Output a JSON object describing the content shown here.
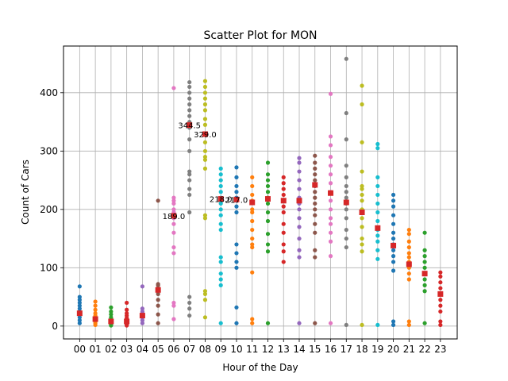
{
  "chart_data": {
    "type": "scatter",
    "title": "Scatter Plot for MON",
    "xlabel": "Hour of the Day",
    "ylabel": "Count of Cars",
    "categories": [
      "00",
      "01",
      "02",
      "03",
      "04",
      "05",
      "06",
      "07",
      "08",
      "09",
      "10",
      "11",
      "12",
      "13",
      "14",
      "15",
      "16",
      "17",
      "18",
      "19",
      "20",
      "21",
      "22",
      "23"
    ],
    "yticks": [
      0,
      100,
      200,
      300,
      400
    ],
    "ylim": [
      -22,
      480
    ],
    "grid": true,
    "mean_marker_color": "#d62728",
    "series": [
      {
        "values": [
          5,
          10,
          15,
          20,
          25,
          30,
          35,
          40,
          45,
          50,
          68
        ],
        "mean": 22
      },
      {
        "values": [
          2,
          5,
          8,
          10,
          12,
          15,
          18,
          22,
          28,
          35,
          42
        ],
        "mean": 12
      },
      {
        "values": [
          1,
          3,
          6,
          8,
          12,
          15,
          20,
          25,
          32
        ],
        "mean": 8
      },
      {
        "values": [
          1,
          3,
          5,
          8,
          10,
          14,
          18,
          22,
          28,
          40
        ],
        "mean": 8
      },
      {
        "values": [
          5,
          10,
          15,
          18,
          22,
          25,
          30,
          68
        ],
        "mean": 18
      },
      {
        "values": [
          5,
          20,
          35,
          45,
          55,
          60,
          65,
          70,
          72,
          215
        ],
        "mean": 62
      },
      {
        "values": [
          12,
          35,
          40,
          125,
          135,
          160,
          175,
          185,
          195,
          200,
          210,
          215,
          220,
          408
        ],
        "mean": 189.0
      },
      {
        "values": [
          18,
          30,
          40,
          50,
          195,
          225,
          235,
          250,
          260,
          265,
          300,
          320,
          340,
          350,
          360,
          370,
          380,
          390,
          400,
          410,
          418
        ],
        "mean": 344.5
      },
      {
        "values": [
          15,
          45,
          55,
          60,
          185,
          190,
          270,
          285,
          290,
          300,
          315,
          330,
          345,
          355,
          370,
          380,
          390,
          400,
          410,
          420
        ],
        "mean": 329.0
      },
      {
        "values": [
          5,
          70,
          80,
          90,
          110,
          118,
          165,
          175,
          190,
          200,
          210,
          215,
          220,
          230,
          240,
          250,
          260,
          270
        ],
        "mean": 218.0
      },
      {
        "values": [
          5,
          32,
          100,
          110,
          125,
          140,
          195,
          205,
          215,
          220,
          230,
          240,
          255,
          272
        ],
        "mean": 217.0
      },
      {
        "values": [
          5,
          12,
          92,
          135,
          140,
          150,
          165,
          180,
          195,
          200,
          215,
          225,
          240,
          255
        ],
        "mean": 212
      },
      {
        "values": [
          5,
          128,
          140,
          158,
          180,
          195,
          210,
          220,
          230,
          240,
          250,
          260,
          280
        ],
        "mean": 218
      },
      {
        "values": [
          110,
          128,
          140,
          160,
          175,
          195,
          205,
          215,
          225,
          235,
          245,
          255
        ],
        "mean": 215
      },
      {
        "values": [
          5,
          118,
          130,
          150,
          170,
          185,
          200,
          210,
          220,
          235,
          250,
          265,
          280,
          288
        ],
        "mean": 215
      },
      {
        "values": [
          5,
          118,
          130,
          160,
          175,
          190,
          200,
          210,
          220,
          230,
          240,
          250,
          260,
          270,
          280,
          292
        ],
        "mean": 242
      },
      {
        "values": [
          5,
          120,
          145,
          160,
          175,
          185,
          200,
          215,
          230,
          245,
          260,
          275,
          290,
          310,
          325,
          398
        ],
        "mean": 228
      },
      {
        "values": [
          2,
          135,
          150,
          165,
          185,
          200,
          210,
          220,
          230,
          240,
          255,
          275,
          320,
          365,
          458
        ],
        "mean": 212
      },
      {
        "values": [
          2,
          128,
          140,
          150,
          170,
          185,
          200,
          215,
          225,
          235,
          240,
          265,
          315,
          380,
          412
        ],
        "mean": 195
      },
      {
        "values": [
          2,
          115,
          130,
          145,
          155,
          165,
          180,
          195,
          210,
          225,
          240,
          255,
          305,
          312
        ],
        "mean": 168
      },
      {
        "values": [
          2,
          8,
          95,
          110,
          120,
          130,
          140,
          150,
          160,
          175,
          190,
          205,
          215,
          225
        ],
        "mean": 138
      },
      {
        "values": [
          2,
          8,
          80,
          90,
          100,
          110,
          118,
          125,
          135,
          145,
          158,
          165
        ],
        "mean": 106
      },
      {
        "values": [
          5,
          60,
          70,
          80,
          90,
          100,
          110,
          120,
          130,
          160
        ],
        "mean": 90
      },
      {
        "values": [
          2,
          8,
          25,
          35,
          45,
          55,
          65,
          75,
          85,
          92
        ],
        "mean": 55
      }
    ],
    "annotations": [
      {
        "text": "189.0",
        "x": "06",
        "y": 189.0
      },
      {
        "text": "344.5",
        "x": "07",
        "y": 344.5
      },
      {
        "text": "329.0",
        "x": "08",
        "y": 329.0
      },
      {
        "text": "218.0",
        "x": "09",
        "y": 218.0
      },
      {
        "text": "217.0",
        "x": "10",
        "y": 217.0
      }
    ]
  },
  "palette": [
    "#1f77b4",
    "#ff7f0e",
    "#2ca02c",
    "#d62728",
    "#9467bd",
    "#8c564b",
    "#e377c2",
    "#7f7f7f",
    "#bcbd22",
    "#17becf"
  ]
}
